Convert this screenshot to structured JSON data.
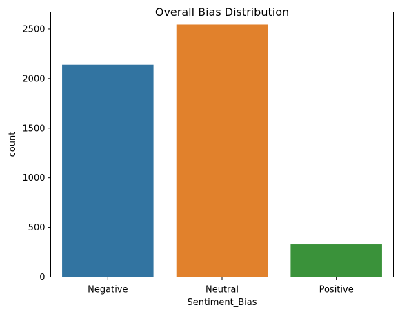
{
  "chart_data": {
    "type": "bar",
    "title": "Overall Bias Distribution",
    "xlabel": "Sentiment_Bias",
    "ylabel": "count",
    "categories": [
      "Negative",
      "Neutral",
      "Positive"
    ],
    "values": [
      2140,
      2545,
      330
    ],
    "colors": [
      "#3274a1",
      "#e1812c",
      "#3a923a"
    ],
    "ylim": [
      0,
      2670
    ],
    "yticks": [
      0,
      500,
      1000,
      1500,
      2000,
      2500
    ],
    "grid": false,
    "legend": "none"
  }
}
